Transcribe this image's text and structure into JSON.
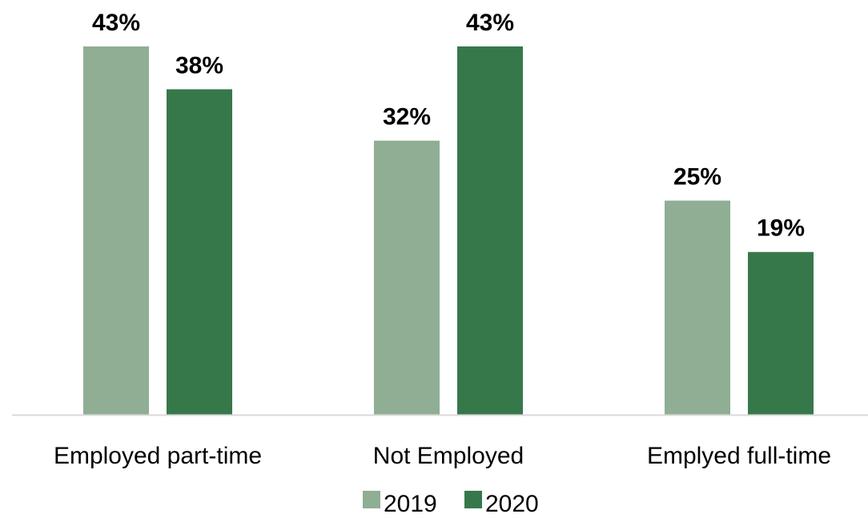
{
  "chart_data": {
    "type": "bar",
    "categories": [
      "Employed part-time",
      "Not Employed",
      "Emplyed full-time"
    ],
    "series": [
      {
        "name": "2019",
        "values": [
          43,
          32,
          25
        ],
        "labels": [
          "43%",
          "32%",
          "25%"
        ],
        "color": "#8FAE94"
      },
      {
        "name": "2020",
        "values": [
          38,
          43,
          19
        ],
        "labels": [
          "38%",
          "43%",
          "19%"
        ],
        "color": "#37784B"
      }
    ],
    "ylim": [
      0,
      43
    ],
    "grid": false,
    "legend_position": "bottom-center",
    "axis_color": "#D9D9D9"
  }
}
